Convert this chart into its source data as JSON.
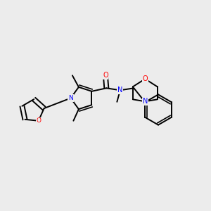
{
  "background_color": "#ececec",
  "bond_color": "#000000",
  "nitrogen_color": "#0000ff",
  "oxygen_color": "#ff0000",
  "bond_width": 1.4,
  "figsize": [
    3.0,
    3.0
  ],
  "dpi": 100,
  "xlim": [
    0,
    10
  ],
  "ylim": [
    0,
    10
  ]
}
